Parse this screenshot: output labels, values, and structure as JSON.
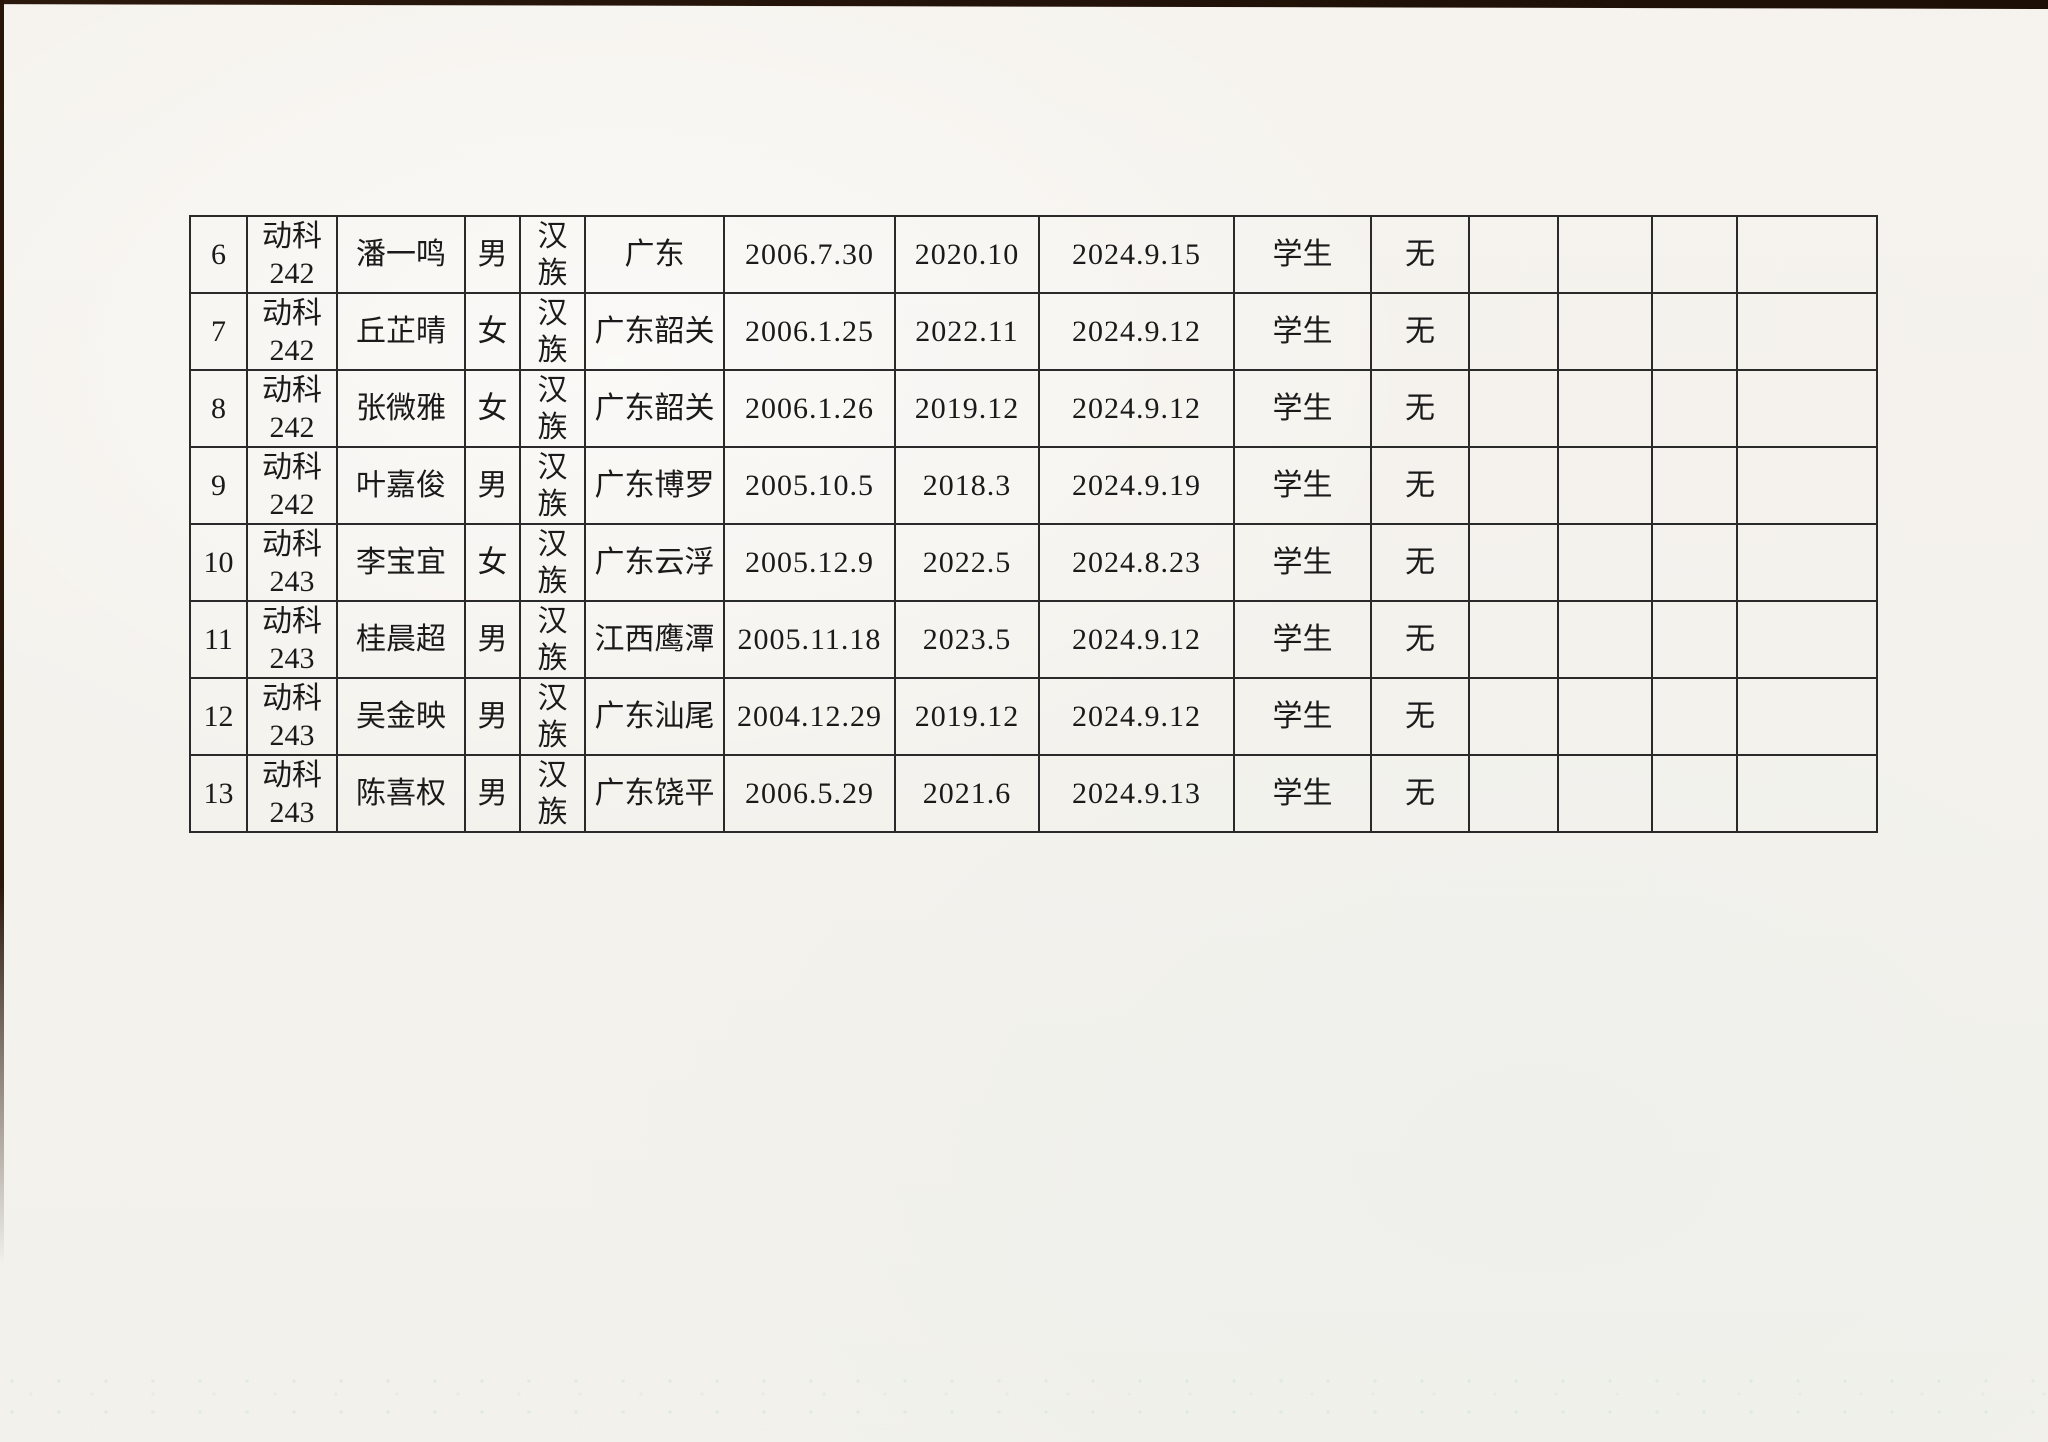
{
  "page": {
    "paper_color": "#f4f2ed",
    "edge_color": "#23130a",
    "ink_color": "#1a1a1a"
  },
  "table": {
    "empty_trailing_columns": 4,
    "rows": [
      {
        "no": "6",
        "class_lines": [
          "动科",
          "242"
        ],
        "name": "潘一鸣",
        "gender": "男",
        "ethnicity_lines": [
          "汉",
          "族"
        ],
        "origin": "广东",
        "birth_date": "2006.7.30",
        "date2": "2020.10",
        "date3": "2024.9.15",
        "role": "学生",
        "remark": "无"
      },
      {
        "no": "7",
        "class_lines": [
          "动科",
          "242"
        ],
        "name": "丘芷晴",
        "gender": "女",
        "ethnicity_lines": [
          "汉",
          "族"
        ],
        "origin": "广东韶关",
        "birth_date": "2006.1.25",
        "date2": "2022.11",
        "date3": "2024.9.12",
        "role": "学生",
        "remark": "无"
      },
      {
        "no": "8",
        "class_lines": [
          "动科",
          "242"
        ],
        "name": "张微雅",
        "gender": "女",
        "ethnicity_lines": [
          "汉",
          "族"
        ],
        "origin": "广东韶关",
        "birth_date": "2006.1.26",
        "date2": "2019.12",
        "date3": "2024.9.12",
        "role": "学生",
        "remark": "无"
      },
      {
        "no": "9",
        "class_lines": [
          "动科",
          "242"
        ],
        "name": "叶嘉俊",
        "gender": "男",
        "ethnicity_lines": [
          "汉",
          "族"
        ],
        "origin": "广东博罗",
        "birth_date": "2005.10.5",
        "date2": "2018.3",
        "date3": "2024.9.19",
        "role": "学生",
        "remark": "无"
      },
      {
        "no": "10",
        "class_lines": [
          "动科",
          "243"
        ],
        "name": "李宝宜",
        "gender": "女",
        "ethnicity_lines": [
          "汉",
          "族"
        ],
        "origin": "广东云浮",
        "birth_date": "2005.12.9",
        "date2": "2022.5",
        "date3": "2024.8.23",
        "role": "学生",
        "remark": "无"
      },
      {
        "no": "11",
        "class_lines": [
          "动科",
          "243"
        ],
        "name": "桂晨超",
        "gender": "男",
        "ethnicity_lines": [
          "汉",
          "族"
        ],
        "origin": "江西鹰潭",
        "birth_date": "2005.11.18",
        "date2": "2023.5",
        "date3": "2024.9.12",
        "role": "学生",
        "remark": "无"
      },
      {
        "no": "12",
        "class_lines": [
          "动科",
          "243"
        ],
        "name": "吴金映",
        "gender": "男",
        "ethnicity_lines": [
          "汉",
          "族"
        ],
        "origin": "广东汕尾",
        "birth_date": "2004.12.29",
        "date2": "2019.12",
        "date3": "2024.9.12",
        "role": "学生",
        "remark": "无"
      },
      {
        "no": "13",
        "class_lines": [
          "动科",
          "243"
        ],
        "name": "陈喜权",
        "gender": "男",
        "ethnicity_lines": [
          "汉",
          "族"
        ],
        "origin": "广东饶平",
        "birth_date": "2006.5.29",
        "date2": "2021.6",
        "date3": "2024.9.13",
        "role": "学生",
        "remark": "无"
      }
    ]
  }
}
